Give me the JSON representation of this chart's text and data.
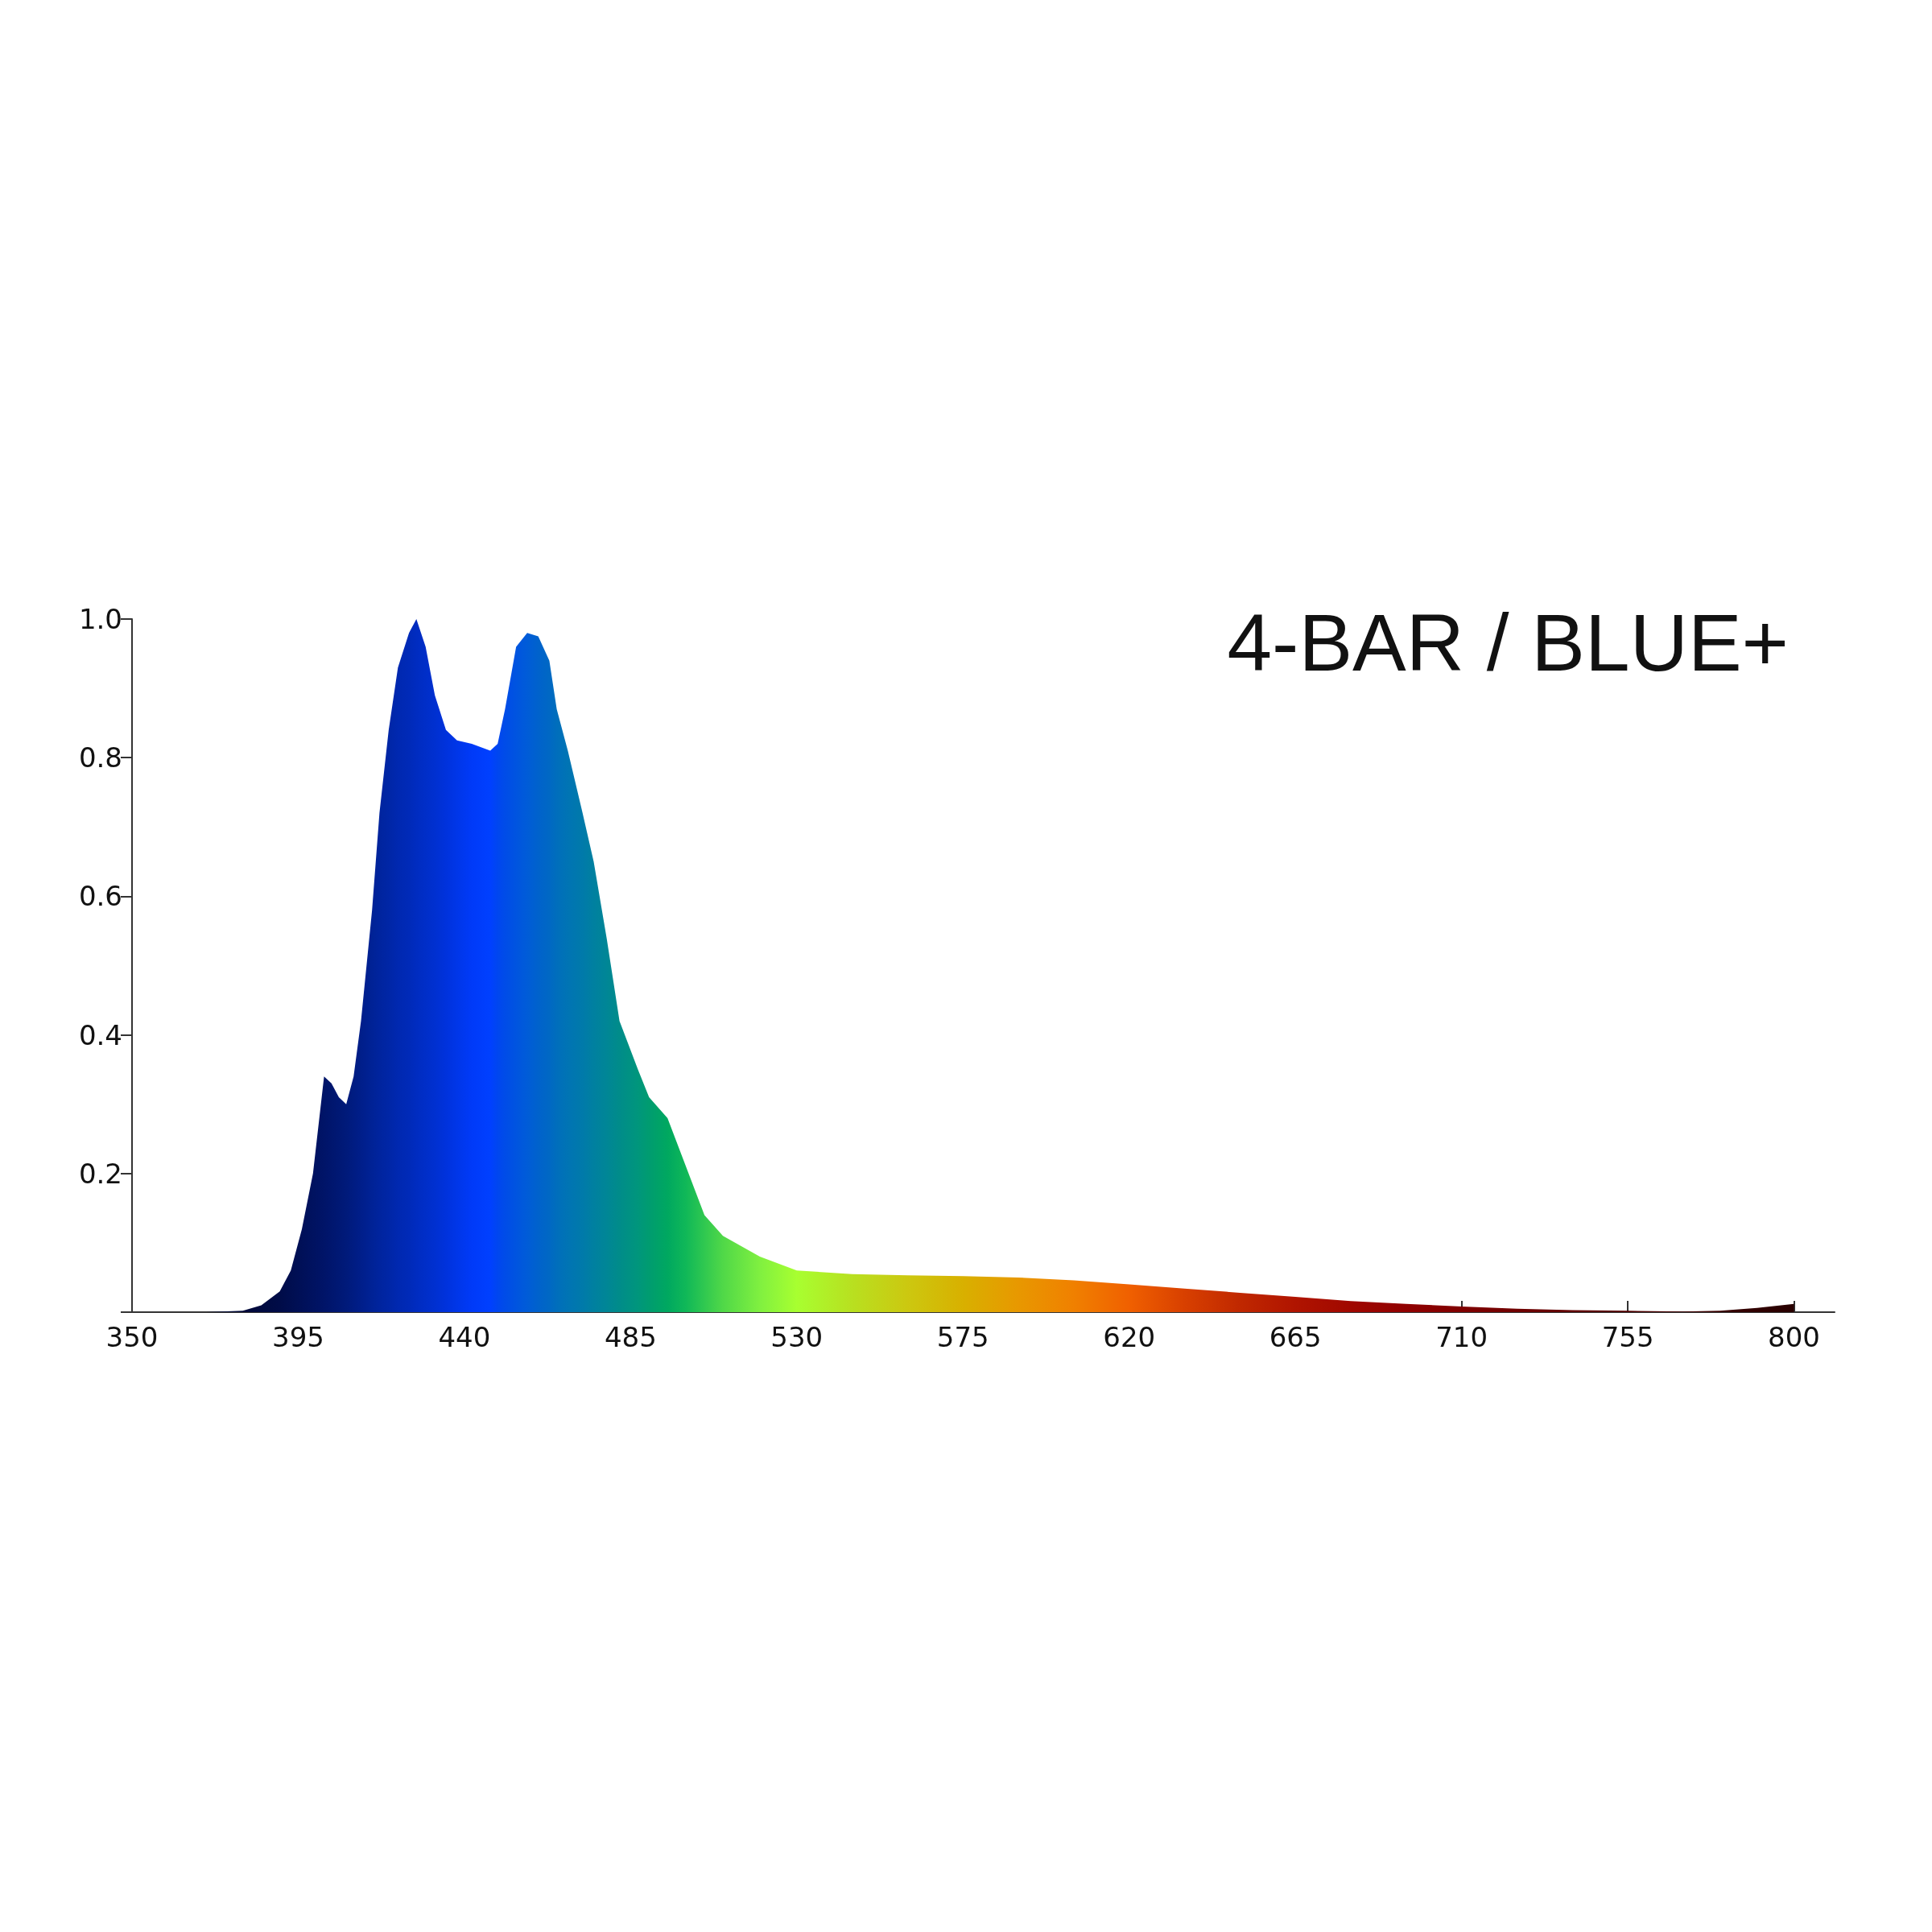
{
  "chart_data": {
    "type": "area",
    "title": "4-BAR / BLUE+",
    "x": [
      350,
      370,
      380,
      385,
      390,
      393,
      396,
      399,
      402,
      404,
      406,
      408,
      410,
      412,
      415,
      417,
      419.5,
      422,
      425,
      427,
      429.5,
      432,
      435,
      438,
      442,
      447,
      449,
      451,
      454,
      457,
      460,
      463,
      465,
      468,
      472,
      475,
      478.5,
      482,
      487,
      490,
      495,
      500,
      505,
      510,
      520,
      530,
      545,
      560,
      575,
      590,
      605,
      620,
      635,
      650,
      665,
      680,
      695,
      710,
      725,
      740,
      755,
      770,
      780,
      790,
      800
    ],
    "series": [
      {
        "values": [
          0,
          0,
          0.002,
          0.01,
          0.03,
          0.06,
          0.12,
          0.2,
          0.34,
          0.33,
          0.31,
          0.3,
          0.34,
          0.42,
          0.58,
          0.72,
          0.84,
          0.93,
          0.98,
          1.0,
          0.96,
          0.89,
          0.84,
          0.825,
          0.82,
          0.81,
          0.82,
          0.87,
          0.96,
          0.98,
          0.975,
          0.94,
          0.87,
          0.81,
          0.72,
          0.65,
          0.54,
          0.42,
          0.35,
          0.31,
          0.28,
          0.21,
          0.14,
          0.11,
          0.08,
          0.06,
          0.055,
          0.053,
          0.052,
          0.05,
          0.046,
          0.04,
          0.034,
          0.028,
          0.022,
          0.016,
          0.012,
          0.008,
          0.005,
          0.003,
          0.002,
          0.001,
          0.002,
          0.006,
          0.012
        ],
        "colors": [
          "#000830",
          "#000830",
          "#000838",
          "#000a40",
          "#000c48",
          "#000e50",
          "#001058",
          "#001260",
          "#001468",
          "#00166e",
          "#001874",
          "#001a7a",
          "#001c82",
          "#001e8a",
          "#002296",
          "#00249e",
          "#0026a6",
          "#0028b0",
          "#002ab8",
          "#002cc0",
          "#002ec8",
          "#0030d0",
          "#0032dc",
          "#0036e8",
          "#003af8",
          "#0040ff",
          "#0046f0",
          "#004ce8",
          "#0054e0",
          "#005cd8",
          "#0062cc",
          "#0068c4",
          "#006ebc",
          "#0074b4",
          "#007aaa",
          "#0080a0",
          "#008696",
          "#008c8a",
          "#00967c",
          "#009c70",
          "#00a860",
          "#10b858",
          "#30c850",
          "#50d848",
          "#80f040",
          "#a8ff30",
          "#b8e020",
          "#ccc810",
          "#d8b000",
          "#e89800",
          "#f08000",
          "#f06000",
          "#d84000",
          "#c02800",
          "#b01400",
          "#a00800",
          "#900000",
          "#800000",
          "#700000",
          "#600000",
          "#500000",
          "#400000",
          "#380000",
          "#300000",
          "#280000"
        ]
      }
    ],
    "xlim": [
      350,
      811
    ],
    "xticks": [
      350,
      395,
      440,
      485,
      530,
      575,
      620,
      665,
      710,
      755,
      800
    ],
    "ylim": [
      0,
      1
    ],
    "yticks": [
      {
        "value": 0,
        "label": null
      },
      0.2,
      0.4,
      0.6,
      0.8,
      {
        "value": 1,
        "label": "1.0"
      }
    ],
    "grid": false
  }
}
